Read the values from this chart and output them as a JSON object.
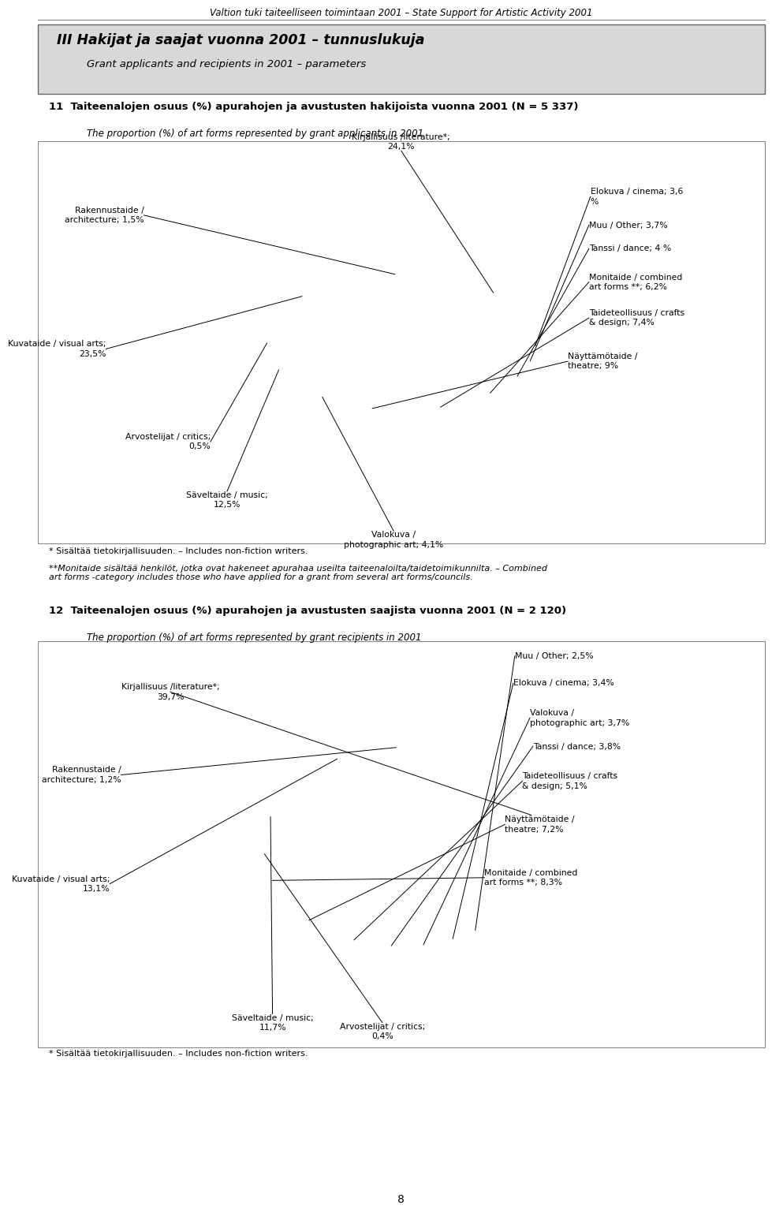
{
  "page_title": "Valtion tuki taiteelliseen toimintaan 2001 – State Support for Artistic Activity 2001",
  "section_title": "III Hakijat ja saajat vuonna 2001 – tunnuslukuja",
  "section_subtitle": "Grant applicants and recipients in 2001 – parameters",
  "chart1_title": "11  Taiteenalojen osuus (%) apurahojen ja avustusten hakijoista vuonna 2001 (N = 5 337)",
  "chart1_subtitle": "The proportion (%) of art forms represented by grant applicants in 2001",
  "chart1_slices": [
    {
      "label": "Kirjallisuus /literature*;\n24,1%",
      "value": 24.1
    },
    {
      "label": "Elokuva / cinema; 3,6\n%",
      "value": 3.6
    },
    {
      "label": "Muu / Other; 3,7%",
      "value": 3.7
    },
    {
      "label": "Tanssi / dance; 4 %",
      "value": 4.0
    },
    {
      "label": "Monitaide / combined\nart forms **; 6,2%",
      "value": 6.2
    },
    {
      "label": "Taideteollisuus / crafts\n& design; 7,4%",
      "value": 7.4
    },
    {
      "label": "Näyttämötaide /\ntheatre; 9%",
      "value": 9.0
    },
    {
      "label": "Valokuva /\nphotographic art; 4,1%",
      "value": 4.1
    },
    {
      "label": "Säveltaide / music;\n12,5%",
      "value": 12.5
    },
    {
      "label": "Arvostelijat / critics;\n0,5%",
      "value": 0.5
    },
    {
      "label": "Kuvataide / visual arts;\n23,5%",
      "value": 23.5
    },
    {
      "label": "Rakennustaide /\narchitecture; 1,5%",
      "value": 1.5
    }
  ],
  "chart2_title": "12  Taiteenalojen osuus (%) apurahojen ja avustusten saajista vuonna 2001 (N = 2 120)",
  "chart2_subtitle": "The proportion (%) of art forms represented by grant recipients in 2001",
  "chart2_slices": [
    {
      "label": "Kirjallisuus /literature*;\n39,7%",
      "value": 39.7
    },
    {
      "label": "Muu / Other; 2,5%",
      "value": 2.5
    },
    {
      "label": "Elokuva / cinema; 3,4%",
      "value": 3.4
    },
    {
      "label": "Valokuva /\nphotographic art; 3,7%",
      "value": 3.7
    },
    {
      "label": "Tanssi / dance; 3,8%",
      "value": 3.8
    },
    {
      "label": "Taideteollisuus / crafts\n& design; 5,1%",
      "value": 5.1
    },
    {
      "label": "Näyttämötaide /\ntheatre; 7,2%",
      "value": 7.2
    },
    {
      "label": "Monitaide / combined\nart forms **; 8,3%",
      "value": 8.3
    },
    {
      "label": "Arvostelijat / critics;\n0,4%",
      "value": 0.4
    },
    {
      "label": "Säveltaide / music;\n11,7%",
      "value": 11.7
    },
    {
      "label": "Kuvataide / visual arts;\n13,1%",
      "value": 13.1
    },
    {
      "label": "Rakennustaide /\narchitecture; 1,2%",
      "value": 1.2
    }
  ],
  "footnote1": "* Sisältää tietokirjallisuuden. – Includes non-fiction writers.",
  "footnote2": "**Monitaide sisältää henkilöt, jotka ovat hakeneet apurahaa useilta taiteenaloilta/taidetoimikunnilta. – Combined\nart forms -category includes those who have applied for a grant from several art forms/councils.",
  "footnote3": "* Sisältää tietokirjallisuuden. – Includes non-fiction writers.",
  "bg_color": "#ffffff",
  "text_color": "#000000",
  "page_num": "8",
  "ellipse_yscale": 0.55,
  "circle_yscale": 0.8
}
